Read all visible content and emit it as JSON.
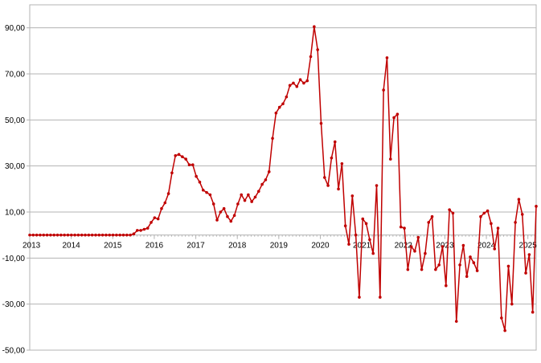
{
  "chart_data": {
    "type": "line",
    "title": "",
    "xlabel": "",
    "ylabel": "",
    "ylim": [
      -50,
      100
    ],
    "yticks": [
      -50,
      -30,
      -10,
      10,
      30,
      50,
      70,
      90
    ],
    "ytick_labels": [
      "-50,00",
      "-30,00",
      "-10,00",
      "10,00",
      "30,00",
      "50,00",
      "70,00",
      "90,00"
    ],
    "xlim": [
      2013,
      2025.2
    ],
    "xticks": [
      2013,
      2014,
      2015,
      2016,
      2017,
      2018,
      2019,
      2020,
      2021,
      2022,
      2023,
      2024,
      2025
    ],
    "xtick_labels": [
      "2013",
      "2014",
      "2015",
      "2016",
      "2017",
      "2018",
      "2019",
      "2020",
      "2021",
      "2022",
      "2023",
      "2024",
      "2025"
    ],
    "grid": true,
    "legend": "none",
    "color": "#c00000",
    "series": [
      {
        "values": [
          0,
          0,
          0,
          0,
          0,
          0,
          0,
          0,
          0,
          0,
          0,
          0,
          0,
          0,
          0,
          0,
          0,
          0,
          0,
          0,
          0,
          0,
          0,
          0,
          0,
          0,
          0,
          0,
          0,
          0,
          0.5,
          2,
          2,
          2.5,
          3,
          5.5,
          7.5,
          7,
          11.5,
          14,
          18,
          27,
          34.5,
          35,
          34,
          33,
          30.5,
          30.5,
          25.5,
          23,
          19.5,
          18.5,
          17.5,
          13.5,
          6.5,
          10,
          11.5,
          8,
          6,
          8.5,
          13.5,
          17.5,
          15,
          17.5,
          14.5,
          16.5,
          19,
          22,
          24,
          27.5,
          42,
          53,
          55.5,
          57,
          60,
          65,
          66,
          64.5,
          67.5,
          66,
          67,
          77.5,
          90.5,
          80.5,
          48.5,
          25,
          21.5,
          33.5,
          40.5,
          20,
          31,
          4,
          -4,
          17,
          0,
          -27,
          7,
          5,
          -2,
          -8,
          21.5,
          -27,
          63,
          77,
          33,
          51,
          52.5,
          3.5,
          3,
          -15,
          -5,
          -7,
          -1,
          -15,
          -8,
          5.5,
          8,
          -15,
          -13,
          -5,
          -22,
          11,
          9.5,
          -37.5,
          -13,
          -4.5,
          -18,
          -9.5,
          -12,
          -15.5,
          8,
          9.5,
          10.5,
          5,
          -6,
          3,
          -36,
          -41.5,
          -13.5,
          -30,
          5.5,
          15.5,
          9,
          -16.5,
          -8.5,
          -33.5,
          12.5
        ]
      }
    ]
  }
}
